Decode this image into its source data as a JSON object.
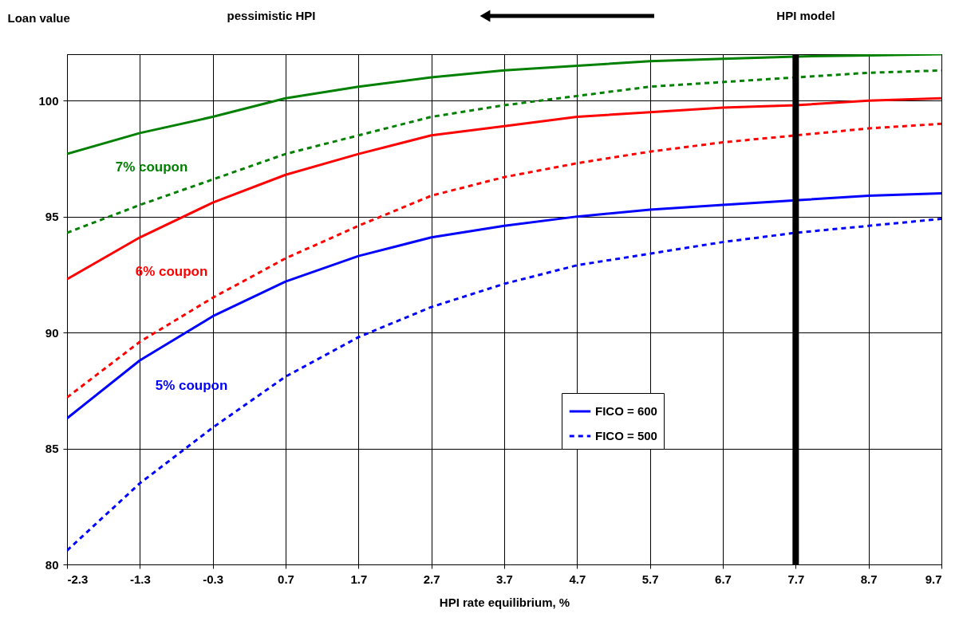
{
  "chart_data": {
    "type": "line",
    "xlabel": "HPI rate equilibrium, %",
    "ylabel": "Loan value",
    "x": [
      -2.3,
      -1.3,
      -0.3,
      0.7,
      1.7,
      2.7,
      3.7,
      4.7,
      5.7,
      6.7,
      7.7,
      8.7,
      9.7
    ],
    "xlim": [
      -2.3,
      9.7
    ],
    "xticks": [
      -2.3,
      -1.3,
      -0.3,
      0.7,
      1.7,
      2.7,
      3.7,
      4.7,
      5.7,
      6.7,
      7.7,
      8.7,
      9.7
    ],
    "ylim": [
      80,
      102
    ],
    "yticks": [
      80,
      85,
      90,
      95,
      100
    ],
    "grid": true,
    "legend": "bottom right",
    "marker": "none",
    "series": [
      {
        "color": "#008000",
        "line_style": "solid",
        "values": [
          97.7,
          98.6,
          99.3,
          100.1,
          100.6,
          101.0,
          101.3,
          101.5,
          101.7,
          101.8,
          101.9,
          101.95,
          102.0
        ]
      },
      {
        "color": "#008000",
        "line_style": "dashed",
        "values": [
          94.3,
          95.5,
          96.6,
          97.7,
          98.5,
          99.3,
          99.8,
          100.2,
          100.6,
          100.8,
          101.0,
          101.2,
          101.3
        ]
      },
      {
        "color": "#ff0000",
        "line_style": "solid",
        "values": [
          92.3,
          94.1,
          95.6,
          96.8,
          97.7,
          98.5,
          98.9,
          99.3,
          99.5,
          99.7,
          99.8,
          100.0,
          100.1
        ]
      },
      {
        "color": "#ff0000",
        "line_style": "dashed",
        "values": [
          87.2,
          89.6,
          91.5,
          93.2,
          94.6,
          95.9,
          96.7,
          97.3,
          97.8,
          98.2,
          98.5,
          98.8,
          99.0
        ]
      },
      {
        "name": "FICO = 600",
        "color": "#0000ff",
        "line_style": "solid",
        "values": [
          86.3,
          88.8,
          90.7,
          92.2,
          93.3,
          94.1,
          94.6,
          95.0,
          95.3,
          95.5,
          95.7,
          95.9,
          96.0
        ]
      },
      {
        "name": "FICO = 500",
        "color": "#0000ff",
        "line_style": "dashed",
        "values": [
          80.6,
          83.5,
          85.9,
          88.1,
          89.8,
          91.1,
          92.1,
          92.9,
          93.4,
          93.9,
          94.3,
          94.6,
          94.9
        ]
      }
    ],
    "ref_lines": [
      {
        "axis": "x",
        "value": 7.7,
        "color": "#000000"
      }
    ],
    "annotations": [
      "7% coupon",
      "6% coupon",
      "5% coupon",
      "pessimistic HPI",
      "HPI model"
    ]
  }
}
